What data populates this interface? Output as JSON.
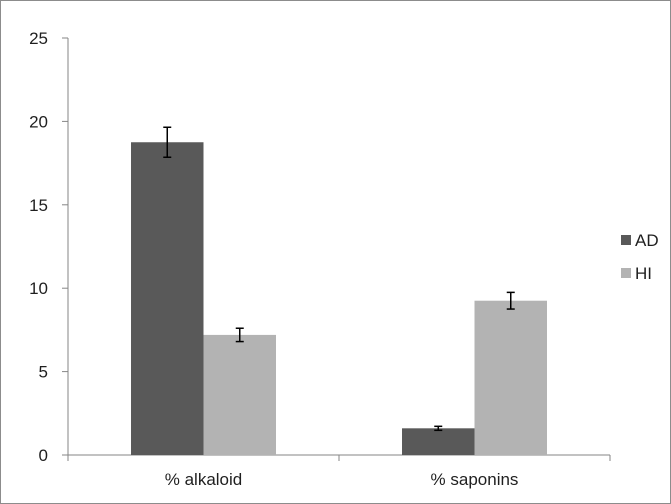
{
  "chart_data": {
    "type": "bar",
    "title": "",
    "xlabel": "",
    "ylabel": "",
    "categories": [
      "% alkaloid",
      "% saponins"
    ],
    "series": [
      {
        "name": "AD",
        "values": [
          18.75,
          1.6
        ],
        "errors": [
          0.9,
          0.12
        ],
        "color": "#595959"
      },
      {
        "name": "HI",
        "values": [
          7.2,
          9.25
        ],
        "errors": [
          0.4,
          0.5
        ],
        "color": "#b3b3b3"
      }
    ],
    "ylim": [
      0,
      25
    ],
    "yticks": [
      "0",
      "5",
      "10",
      "15",
      "20",
      "25"
    ],
    "grid": false,
    "error_bars": true,
    "legend": {
      "position": "right"
    }
  }
}
